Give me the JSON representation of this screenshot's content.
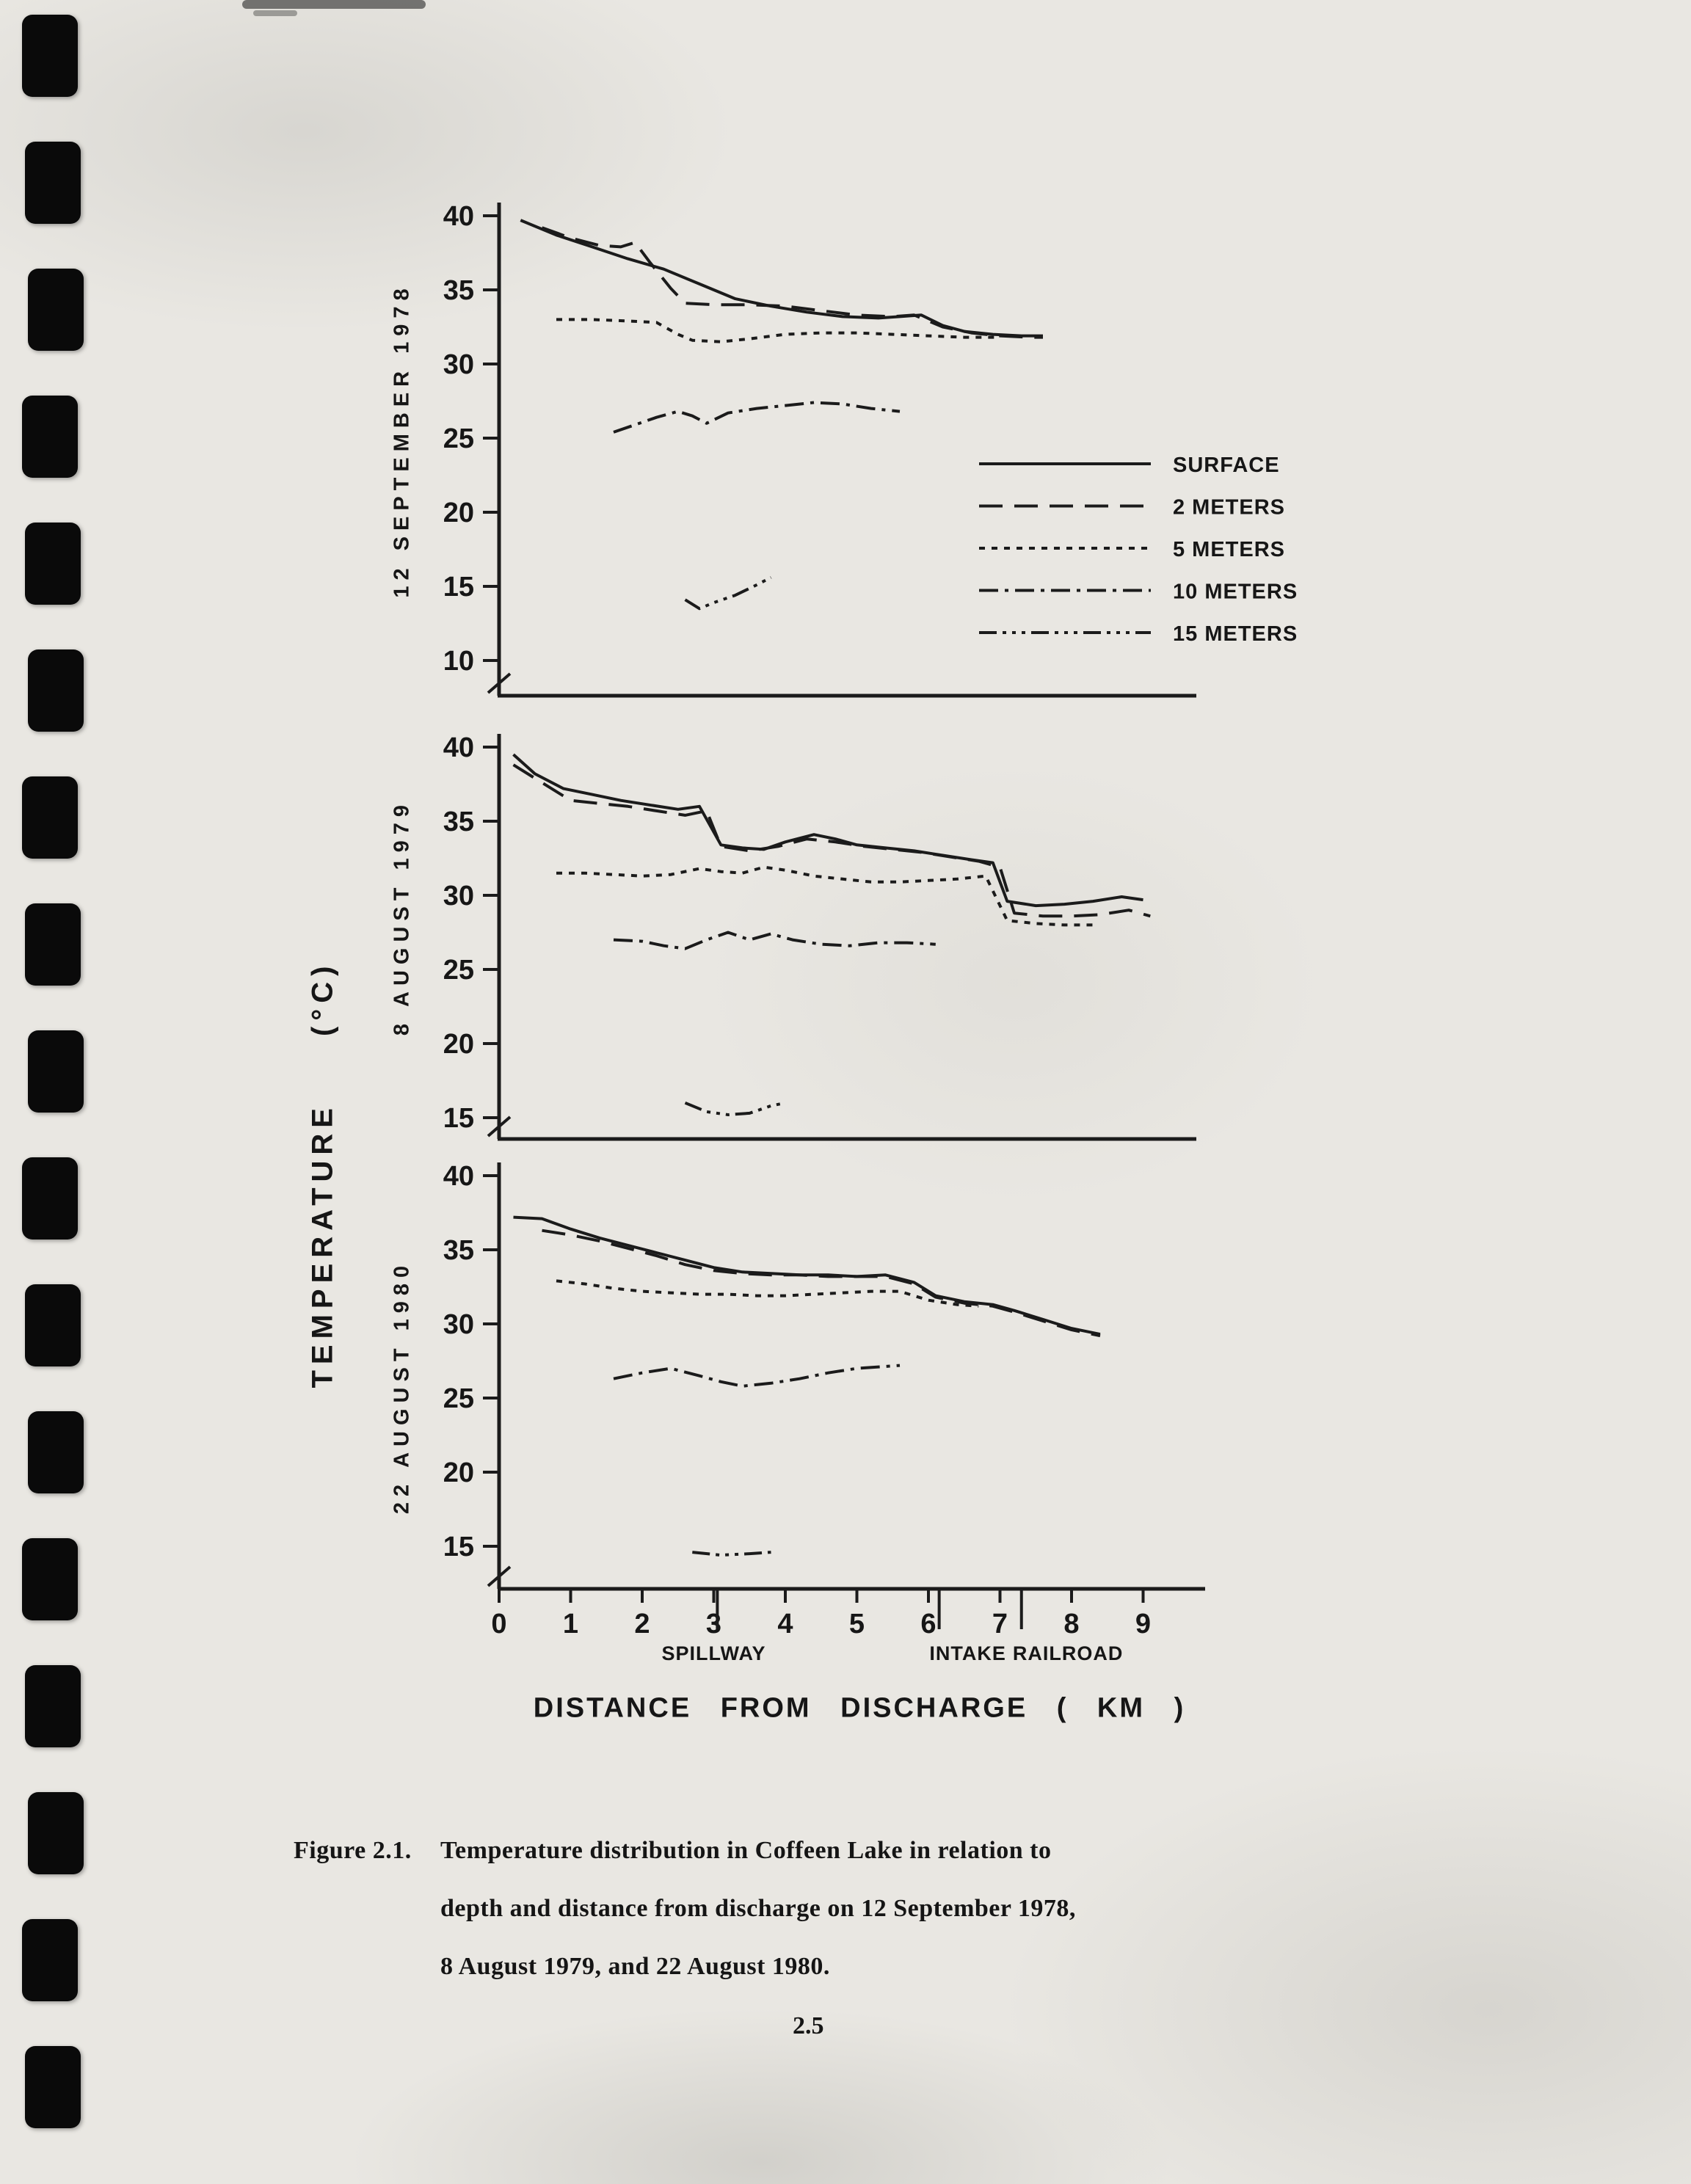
{
  "page": {
    "caption_label": "Figure 2.1.",
    "caption_lines": [
      "Temperature distribution in Coffeen Lake in relation to",
      "depth and distance from discharge on 12 September 1978,",
      "8 August 1979, and 22 August 1980."
    ],
    "page_number": "2.5"
  },
  "axes": {
    "y_title": "TEMPERATURE",
    "y_unit": "(°C)",
    "x_title": "DISTANCE FROM DISCHARGE ( KM )",
    "x_ticks": [
      "0",
      "1",
      "2",
      "3",
      "4",
      "5",
      "6",
      "7",
      "8",
      "9"
    ],
    "landmarks": [
      {
        "label": "SPILLWAY",
        "line_km": 3.05,
        "label_km": 3.0
      },
      {
        "label": "INTAKE",
        "line_km": 6.15,
        "label_km": 6.55
      },
      {
        "label": "RAILROAD",
        "line_km": 7.3,
        "label_km": 7.95
      }
    ]
  },
  "legend": {
    "entries": [
      {
        "label": "SURFACE",
        "dash": "solid"
      },
      {
        "label": "2 METERS",
        "dash": "long-dash"
      },
      {
        "label": "5 METERS",
        "dash": "short-dash"
      },
      {
        "label": "10 METERS",
        "dash": "dash-dot"
      },
      {
        "label": "15 METERS",
        "dash": "dash-dot-dot"
      }
    ]
  },
  "chart_data": [
    {
      "type": "line",
      "title": "12 SEPTEMBER 1978",
      "xlabel": "DISTANCE FROM DISCHARGE ( KM )",
      "ylabel": "TEMPERATURE (°C)",
      "ylim": [
        10,
        40
      ],
      "yticks": [
        10,
        15,
        20,
        25,
        30,
        35,
        40
      ],
      "xlim": [
        0,
        9.5
      ],
      "axis_break": true,
      "grid": false,
      "legend_position": "right",
      "series": [
        {
          "name": "SURFACE",
          "dash": "solid",
          "x": [
            0.3,
            0.8,
            1.3,
            1.8,
            2.3,
            2.8,
            3.3,
            3.8,
            4.3,
            4.8,
            5.3,
            5.6,
            5.9,
            6.2,
            6.5,
            6.9,
            7.3,
            7.6
          ],
          "y": [
            39.7,
            38.7,
            37.9,
            37.1,
            36.4,
            35.4,
            34.4,
            33.9,
            33.5,
            33.2,
            33.1,
            33.2,
            33.3,
            32.6,
            32.2,
            32.0,
            31.9,
            31.9
          ]
        },
        {
          "name": "2 METERS",
          "dash": "long-dash",
          "x": [
            0.6,
            1.0,
            1.4,
            1.7,
            1.9,
            2.1,
            2.4,
            2.6,
            3.0,
            3.5,
            4.0,
            4.5,
            5.0,
            5.5,
            5.8,
            6.2,
            6.6,
            7.0,
            7.4,
            7.6
          ],
          "y": [
            39.2,
            38.5,
            38.0,
            37.9,
            38.2,
            36.9,
            35.1,
            34.1,
            34.0,
            34.0,
            33.9,
            33.6,
            33.3,
            33.2,
            33.3,
            32.5,
            32.1,
            31.9,
            31.8,
            31.8
          ]
        },
        {
          "name": "5 METERS",
          "dash": "short-dash",
          "x": [
            0.8,
            1.3,
            1.8,
            2.2,
            2.5,
            2.7,
            3.1,
            3.5,
            4.0,
            4.5,
            5.0,
            5.5,
            6.0,
            6.5,
            7.0
          ],
          "y": [
            33.0,
            33.0,
            32.9,
            32.8,
            32.0,
            31.6,
            31.5,
            31.7,
            32.0,
            32.1,
            32.1,
            32.0,
            31.9,
            31.8,
            31.8
          ]
        },
        {
          "name": "10 METERS",
          "dash": "dash-dot",
          "x": [
            1.6,
            1.9,
            2.2,
            2.5,
            2.7,
            2.9,
            3.2,
            3.6,
            4.0,
            4.4,
            4.8,
            5.2,
            5.6
          ],
          "y": [
            25.4,
            25.9,
            26.4,
            26.8,
            26.5,
            26.0,
            26.7,
            27.0,
            27.2,
            27.4,
            27.3,
            27.0,
            26.8
          ]
        },
        {
          "name": "15 METERS",
          "dash": "dash-dot-dot",
          "x": [
            2.6,
            2.8,
            3.0,
            3.3,
            3.6,
            3.8
          ],
          "y": [
            14.1,
            13.5,
            13.9,
            14.4,
            15.1,
            15.6
          ]
        }
      ]
    },
    {
      "type": "line",
      "title": "8 AUGUST 1979",
      "xlabel": "DISTANCE FROM DISCHARGE ( KM )",
      "ylabel": "TEMPERATURE (°C)",
      "ylim": [
        15,
        40
      ],
      "yticks": [
        15,
        20,
        25,
        30,
        35,
        40
      ],
      "xlim": [
        0,
        9.5
      ],
      "axis_break": true,
      "grid": false,
      "series": [
        {
          "name": "SURFACE",
          "dash": "solid",
          "x": [
            0.2,
            0.5,
            0.9,
            1.3,
            1.7,
            2.1,
            2.5,
            2.8,
            3.1,
            3.4,
            3.7,
            4.0,
            4.4,
            4.7,
            5.0,
            5.4,
            5.8,
            6.2,
            6.6,
            6.9,
            7.1,
            7.5,
            7.9,
            8.3,
            8.7,
            9.0
          ],
          "y": [
            39.5,
            38.2,
            37.2,
            36.8,
            36.4,
            36.1,
            35.8,
            36.0,
            33.4,
            33.2,
            33.1,
            33.6,
            34.1,
            33.8,
            33.4,
            33.2,
            33.0,
            32.7,
            32.4,
            32.2,
            29.6,
            29.3,
            29.4,
            29.6,
            29.9,
            29.7
          ]
        },
        {
          "name": "2 METERS",
          "dash": "long-dash",
          "x": [
            0.2,
            0.6,
            1.0,
            1.4,
            1.8,
            2.2,
            2.6,
            2.9,
            3.1,
            3.5,
            3.9,
            4.3,
            4.7,
            5.1,
            5.5,
            5.9,
            6.3,
            6.7,
            7.0,
            7.2,
            7.6,
            8.0,
            8.4,
            8.8,
            9.1
          ],
          "y": [
            38.8,
            37.6,
            36.4,
            36.2,
            36.0,
            35.7,
            35.4,
            35.7,
            33.3,
            33.0,
            33.3,
            33.8,
            33.6,
            33.3,
            33.1,
            32.9,
            32.6,
            32.3,
            31.9,
            28.8,
            28.6,
            28.6,
            28.7,
            29.0,
            28.6
          ]
        },
        {
          "name": "5 METERS",
          "dash": "short-dash",
          "x": [
            0.8,
            1.2,
            1.6,
            2.0,
            2.4,
            2.8,
            3.1,
            3.4,
            3.7,
            4.0,
            4.4,
            4.8,
            5.2,
            5.6,
            6.0,
            6.4,
            6.8,
            7.1,
            7.5,
            7.9,
            8.3
          ],
          "y": [
            31.5,
            31.5,
            31.4,
            31.3,
            31.4,
            31.8,
            31.6,
            31.5,
            31.9,
            31.7,
            31.3,
            31.1,
            30.9,
            30.9,
            31.0,
            31.1,
            31.3,
            28.3,
            28.1,
            28.0,
            28.0
          ]
        },
        {
          "name": "10 METERS",
          "dash": "dash-dot",
          "x": [
            1.6,
            2.0,
            2.3,
            2.6,
            2.9,
            3.2,
            3.5,
            3.8,
            4.1,
            4.5,
            4.9,
            5.3,
            5.7,
            6.1
          ],
          "y": [
            27.0,
            26.9,
            26.6,
            26.4,
            27.0,
            27.5,
            27.0,
            27.4,
            27.0,
            26.7,
            26.6,
            26.8,
            26.8,
            26.7
          ]
        },
        {
          "name": "15 METERS",
          "dash": "dash-dot-dot",
          "x": [
            2.6,
            2.9,
            3.2,
            3.5,
            3.8,
            4.0
          ],
          "y": [
            16.0,
            15.4,
            15.2,
            15.3,
            15.8,
            16.0
          ]
        }
      ]
    },
    {
      "type": "line",
      "title": "22 AUGUST 1980",
      "xlabel": "DISTANCE FROM DISCHARGE ( KM )",
      "ylabel": "TEMPERATURE (°C)",
      "ylim": [
        15,
        40
      ],
      "yticks": [
        15,
        20,
        25,
        30,
        35,
        40
      ],
      "xlim": [
        0,
        9.5
      ],
      "axis_break": true,
      "grid": false,
      "series": [
        {
          "name": "SURFACE",
          "dash": "solid",
          "x": [
            0.2,
            0.6,
            1.0,
            1.4,
            1.8,
            2.2,
            2.6,
            3.0,
            3.4,
            3.8,
            4.2,
            4.6,
            5.0,
            5.4,
            5.8,
            6.1,
            6.5,
            6.9,
            7.2,
            7.6,
            8.0,
            8.4
          ],
          "y": [
            37.2,
            37.1,
            36.4,
            35.8,
            35.3,
            34.8,
            34.3,
            33.8,
            33.5,
            33.4,
            33.3,
            33.3,
            33.2,
            33.3,
            32.8,
            31.9,
            31.5,
            31.3,
            30.9,
            30.3,
            29.7,
            29.3
          ]
        },
        {
          "name": "2 METERS",
          "dash": "long-dash",
          "x": [
            0.6,
            1.0,
            1.4,
            1.8,
            2.2,
            2.6,
            3.0,
            3.4,
            3.8,
            4.2,
            4.6,
            5.0,
            5.4,
            5.8,
            6.1,
            6.5,
            6.9,
            7.2,
            7.6,
            8.0,
            8.4
          ],
          "y": [
            36.3,
            36.0,
            35.6,
            35.1,
            34.6,
            34.0,
            33.6,
            33.4,
            33.3,
            33.3,
            33.2,
            33.2,
            33.2,
            32.7,
            31.8,
            31.4,
            31.2,
            30.8,
            30.2,
            29.6,
            29.2
          ]
        },
        {
          "name": "5 METERS",
          "dash": "short-dash",
          "x": [
            0.8,
            1.2,
            1.6,
            2.0,
            2.4,
            2.8,
            3.2,
            3.6,
            4.0,
            4.4,
            4.8,
            5.2,
            5.6,
            6.0,
            6.4,
            6.7
          ],
          "y": [
            32.9,
            32.7,
            32.4,
            32.2,
            32.1,
            32.0,
            32.0,
            31.9,
            31.9,
            32.0,
            32.1,
            32.2,
            32.2,
            31.6,
            31.3,
            31.2
          ]
        },
        {
          "name": "10 METERS",
          "dash": "dash-dot",
          "x": [
            1.6,
            2.0,
            2.4,
            2.8,
            3.1,
            3.4,
            3.8,
            4.2,
            4.6,
            5.0,
            5.3,
            5.6
          ],
          "y": [
            26.3,
            26.7,
            27.0,
            26.5,
            26.1,
            25.8,
            26.0,
            26.3,
            26.7,
            27.0,
            27.1,
            27.2
          ]
        },
        {
          "name": "15 METERS",
          "dash": "dash-dot-dot",
          "x": [
            2.7,
            3.1,
            3.5,
            3.8
          ],
          "y": [
            14.6,
            14.4,
            14.5,
            14.6
          ]
        }
      ]
    }
  ]
}
